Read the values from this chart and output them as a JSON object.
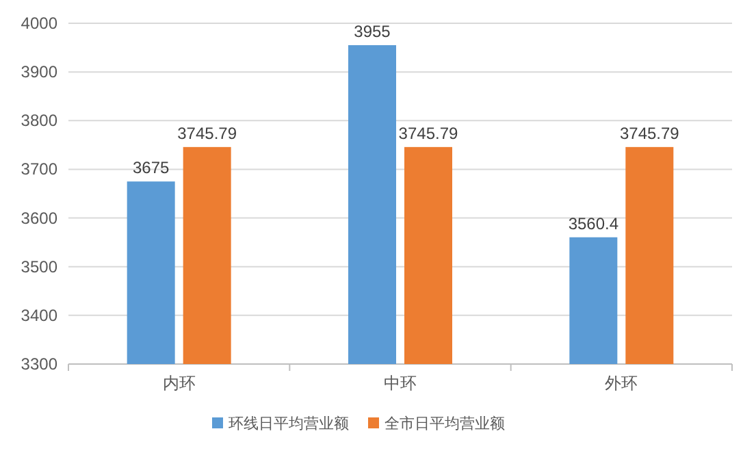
{
  "chart_data": {
    "type": "bar",
    "categories": [
      "内环",
      "中环",
      "外环"
    ],
    "series": [
      {
        "name": "环线日平均营业额",
        "color": "#5b9bd5",
        "values": [
          3675,
          3955,
          3560.4
        ]
      },
      {
        "name": "全市日平均营业额",
        "color": "#ed7d31",
        "values": [
          3745.79,
          3745.79,
          3745.79
        ]
      }
    ],
    "ylim": [
      3300,
      4000
    ],
    "yticks": [
      3300,
      3400,
      3500,
      3600,
      3700,
      3800,
      3900,
      4000
    ],
    "grid": "y",
    "legend": "bottom",
    "data_labels": true
  }
}
